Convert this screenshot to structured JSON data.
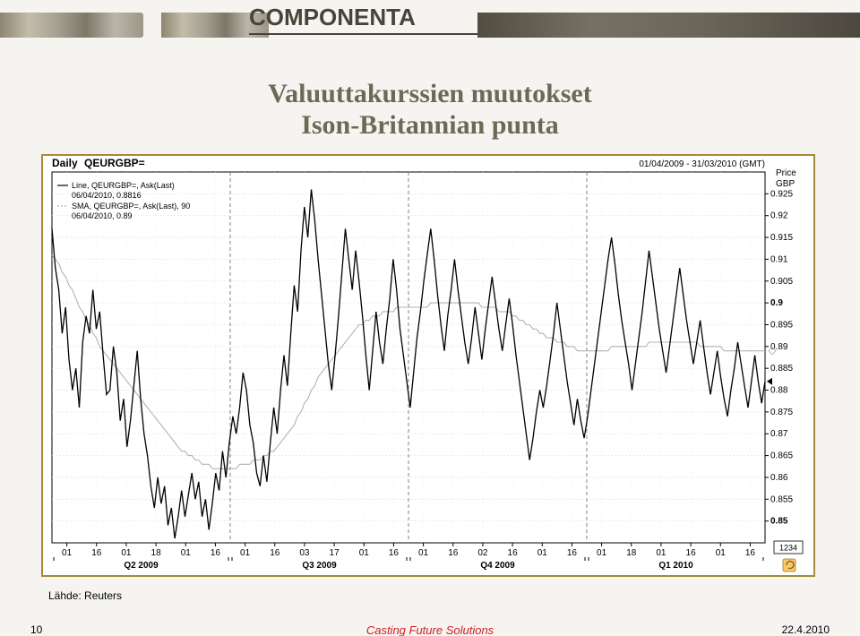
{
  "header": {
    "logo_text": "COMPONENTA"
  },
  "title_line1": "Valuuttakurssien muutokset",
  "title_line2": "Ison-Britannian punta",
  "chart": {
    "type": "line",
    "title_prefix": "Daily",
    "title_symbol": "QEURGBP=",
    "date_range": "01/04/2009 - 31/03/2010 (GMT)",
    "y_axis_title1": "Price",
    "y_axis_title2": "GBP",
    "legend_line1": "Line, QEURGBP=, Ask(Last)",
    "legend_line1_val": "06/04/2010, 0.8816",
    "legend_line2": "SMA, QEURGBP=, Ask(Last),  90",
    "legend_line2_val": "06/04/2010, 0.89",
    "ylim": [
      0.845,
      0.93
    ],
    "yticks": [
      0.85,
      0.855,
      0.86,
      0.865,
      0.87,
      0.875,
      0.88,
      0.885,
      0.89,
      0.895,
      0.9,
      0.905,
      0.91,
      0.915,
      0.92,
      0.925
    ],
    "ytick_bold": [
      0.85,
      0.9
    ],
    "xticks_all": [
      "01",
      "16",
      "01",
      "18",
      "01",
      "16",
      "01",
      "16",
      "03",
      "17",
      "01",
      "16",
      "01",
      "16",
      "02",
      "16",
      "01",
      "16",
      "01",
      "18",
      "01",
      "16",
      "01",
      "16"
    ],
    "x_months": [
      "Q2 2009",
      "Q3 2009",
      "Q4 2009",
      "Q1 2010"
    ],
    "quarter_starts_idx": [
      0,
      6,
      12,
      18
    ],
    "quarter_ends_idx": [
      5,
      11,
      17,
      23
    ],
    "badge": "1234",
    "colors": {
      "grid_major": "#b8b8b8",
      "grid_minor": "#e6e6e6",
      "axis": "#000000",
      "price_line": "#000000",
      "sma_line": "#b3b3b3",
      "quarter_divider": "#808080",
      "text": "#000000",
      "last_marker": "#000000"
    },
    "line_width_price": 1.3,
    "line_width_sma": 1.1,
    "font_size_axis": 10,
    "font_size_title": 12,
    "price_series": [
      0.917,
      0.908,
      0.903,
      0.893,
      0.899,
      0.887,
      0.88,
      0.885,
      0.876,
      0.891,
      0.897,
      0.893,
      0.903,
      0.894,
      0.898,
      0.888,
      0.879,
      0.88,
      0.89,
      0.884,
      0.873,
      0.878,
      0.867,
      0.873,
      0.881,
      0.889,
      0.878,
      0.87,
      0.865,
      0.858,
      0.853,
      0.86,
      0.854,
      0.858,
      0.849,
      0.853,
      0.846,
      0.851,
      0.857,
      0.851,
      0.856,
      0.861,
      0.855,
      0.859,
      0.851,
      0.855,
      0.848,
      0.854,
      0.861,
      0.857,
      0.866,
      0.86,
      0.868,
      0.874,
      0.87,
      0.876,
      0.884,
      0.88,
      0.872,
      0.868,
      0.861,
      0.858,
      0.865,
      0.859,
      0.868,
      0.876,
      0.87,
      0.88,
      0.888,
      0.881,
      0.893,
      0.904,
      0.898,
      0.912,
      0.922,
      0.915,
      0.926,
      0.919,
      0.91,
      0.902,
      0.894,
      0.886,
      0.88,
      0.888,
      0.897,
      0.907,
      0.917,
      0.91,
      0.903,
      0.912,
      0.905,
      0.897,
      0.888,
      0.88,
      0.889,
      0.898,
      0.891,
      0.886,
      0.894,
      0.901,
      0.91,
      0.903,
      0.894,
      0.888,
      0.882,
      0.876,
      0.884,
      0.892,
      0.898,
      0.905,
      0.911,
      0.917,
      0.91,
      0.902,
      0.895,
      0.889,
      0.897,
      0.903,
      0.91,
      0.903,
      0.897,
      0.891,
      0.886,
      0.892,
      0.899,
      0.893,
      0.887,
      0.894,
      0.9,
      0.906,
      0.9,
      0.894,
      0.889,
      0.895,
      0.901,
      0.895,
      0.888,
      0.882,
      0.876,
      0.87,
      0.864,
      0.869,
      0.875,
      0.88,
      0.876,
      0.881,
      0.887,
      0.893,
      0.9,
      0.894,
      0.888,
      0.882,
      0.877,
      0.872,
      0.878,
      0.873,
      0.869,
      0.874,
      0.88,
      0.886,
      0.892,
      0.898,
      0.904,
      0.91,
      0.915,
      0.909,
      0.902,
      0.896,
      0.891,
      0.886,
      0.88,
      0.886,
      0.892,
      0.898,
      0.905,
      0.912,
      0.906,
      0.9,
      0.894,
      0.889,
      0.884,
      0.89,
      0.896,
      0.902,
      0.908,
      0.902,
      0.896,
      0.891,
      0.886,
      0.891,
      0.896,
      0.89,
      0.884,
      0.879,
      0.884,
      0.889,
      0.883,
      0.878,
      0.874,
      0.88,
      0.885,
      0.891,
      0.886,
      0.881,
      0.876,
      0.882,
      0.888,
      0.882,
      0.877,
      0.882
    ],
    "sma_series": [
      0.911,
      0.91,
      0.909,
      0.907,
      0.906,
      0.904,
      0.903,
      0.901,
      0.899,
      0.898,
      0.896,
      0.895,
      0.893,
      0.892,
      0.89,
      0.889,
      0.888,
      0.887,
      0.886,
      0.885,
      0.884,
      0.883,
      0.882,
      0.881,
      0.88,
      0.879,
      0.878,
      0.877,
      0.876,
      0.875,
      0.874,
      0.873,
      0.872,
      0.871,
      0.87,
      0.869,
      0.868,
      0.867,
      0.866,
      0.866,
      0.865,
      0.865,
      0.864,
      0.864,
      0.863,
      0.863,
      0.863,
      0.862,
      0.862,
      0.862,
      0.862,
      0.862,
      0.862,
      0.862,
      0.862,
      0.863,
      0.863,
      0.863,
      0.863,
      0.864,
      0.864,
      0.864,
      0.865,
      0.865,
      0.866,
      0.866,
      0.867,
      0.868,
      0.869,
      0.87,
      0.871,
      0.872,
      0.874,
      0.875,
      0.877,
      0.878,
      0.88,
      0.881,
      0.883,
      0.884,
      0.885,
      0.886,
      0.887,
      0.888,
      0.889,
      0.89,
      0.891,
      0.892,
      0.893,
      0.894,
      0.895,
      0.895,
      0.896,
      0.896,
      0.897,
      0.897,
      0.897,
      0.898,
      0.898,
      0.898,
      0.898,
      0.899,
      0.899,
      0.899,
      0.899,
      0.899,
      0.899,
      0.899,
      0.899,
      0.899,
      0.899,
      0.9,
      0.9,
      0.9,
      0.9,
      0.9,
      0.9,
      0.9,
      0.9,
      0.9,
      0.9,
      0.9,
      0.9,
      0.9,
      0.9,
      0.9,
      0.899,
      0.899,
      0.899,
      0.899,
      0.899,
      0.898,
      0.898,
      0.898,
      0.898,
      0.897,
      0.897,
      0.896,
      0.896,
      0.895,
      0.895,
      0.894,
      0.894,
      0.893,
      0.893,
      0.892,
      0.892,
      0.892,
      0.891,
      0.891,
      0.891,
      0.89,
      0.89,
      0.89,
      0.889,
      0.889,
      0.889,
      0.889,
      0.889,
      0.889,
      0.889,
      0.889,
      0.889,
      0.889,
      0.89,
      0.89,
      0.89,
      0.89,
      0.89,
      0.89,
      0.89,
      0.89,
      0.89,
      0.89,
      0.89,
      0.891,
      0.891,
      0.891,
      0.891,
      0.891,
      0.891,
      0.891,
      0.891,
      0.891,
      0.891,
      0.891,
      0.891,
      0.891,
      0.891,
      0.891,
      0.89,
      0.89,
      0.89,
      0.89,
      0.89,
      0.89,
      0.89,
      0.889,
      0.889,
      0.889,
      0.889,
      0.889,
      0.889,
      0.889,
      0.889,
      0.889,
      0.889,
      0.889,
      0.889,
      0.889
    ]
  },
  "source_label": "Lähde: Reuters",
  "footer": {
    "page": "10",
    "center": "Casting Future Solutions",
    "date": "22.4.2010"
  }
}
